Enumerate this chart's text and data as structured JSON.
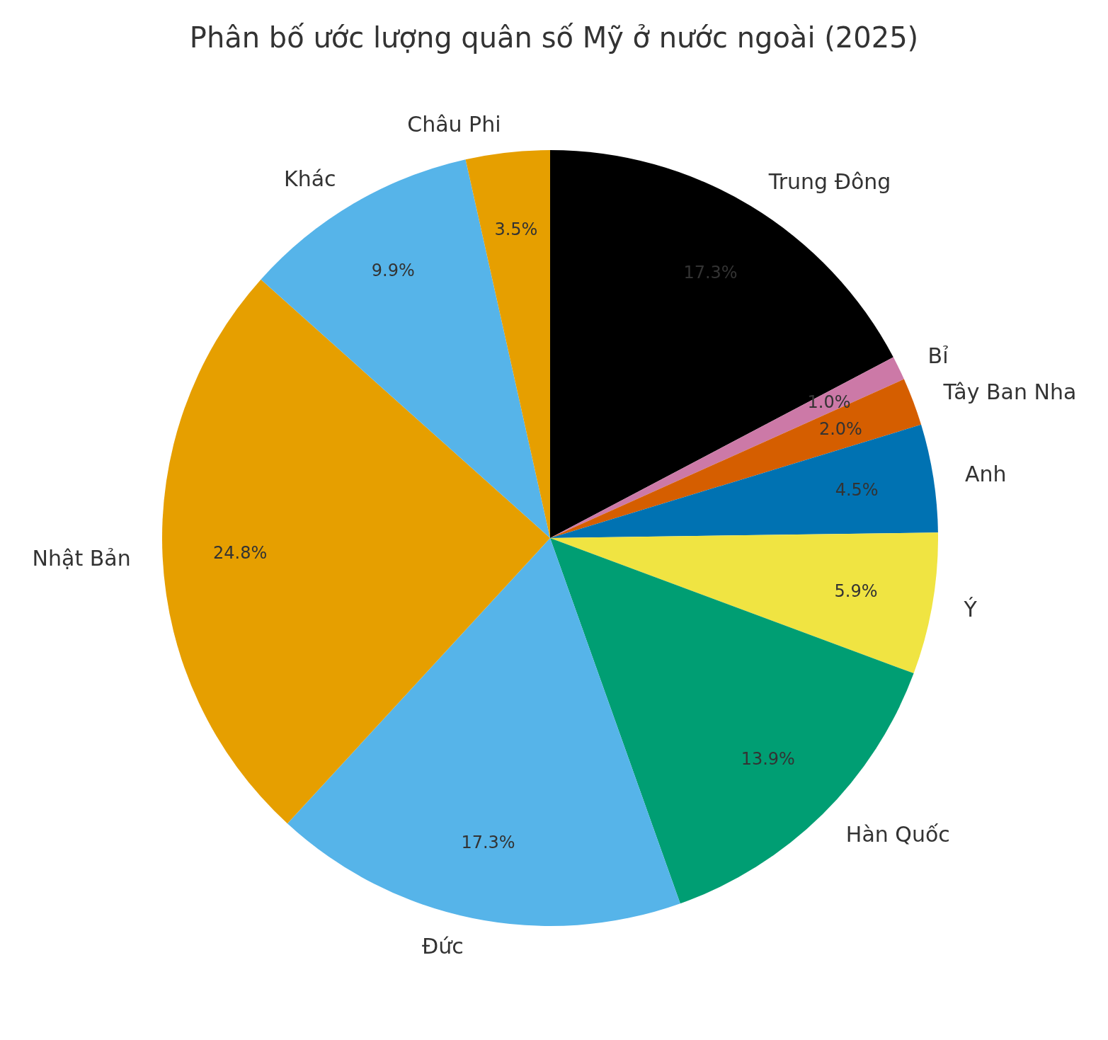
{
  "chart_data": {
    "type": "pie",
    "title": "Phân bố ước lượng quân số Mỹ ở nước ngoài (2025)",
    "categories": [
      "Trung Đông",
      "Bỉ",
      "Tây Ban Nha",
      "Anh",
      "Ý",
      "Hàn Quốc",
      "Đức",
      "Nhật Bản",
      "Khác",
      "Châu Phi"
    ],
    "values": [
      17.3,
      1.0,
      2.0,
      4.5,
      5.9,
      13.9,
      17.3,
      24.8,
      9.9,
      3.5
    ],
    "colors": [
      "#000000",
      "#cc79a7",
      "#d55e00",
      "#0072b2",
      "#f0e442",
      "#009e73",
      "#56b4e9",
      "#e69f00",
      "#56b4e9",
      "#e69f00"
    ],
    "value_labels": [
      "17.3%",
      "1.0%",
      "2.0%",
      "4.5%",
      "5.9%",
      "13.9%",
      "17.3%",
      "24.8%",
      "9.9%",
      "3.5%"
    ],
    "legend": false
  }
}
